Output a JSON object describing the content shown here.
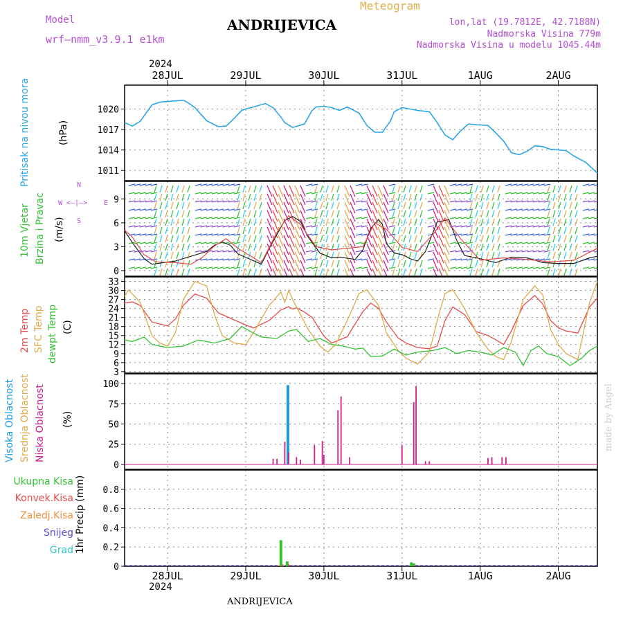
{
  "header": {
    "model_label": "Model",
    "model_name": "wrf—nmm_v3.9.1  e1km",
    "title": "ANDRIJEVICA",
    "subtitle": "Meteogram",
    "coords": "lon,lat (19.7812E, 42.7188N)",
    "elevation": "Nadmorska Visina 779m",
    "model_elevation": "Nadmorska Visina u modelu 1045.44m",
    "year_top": "2024",
    "year_bottom": "2024",
    "footer_station": "ANDRIJEVICA",
    "watermark": "made by Angel"
  },
  "colors": {
    "pressure": "#2aa6e8",
    "temp2m": "#e84a4a",
    "sfc": "#e0a94a",
    "dewpoint": "#33c233",
    "high_cloud": "#1e9be0",
    "mid_cloud": "#e0a94a",
    "low_cloud": "#cc1f8a",
    "precip_total": "#33c233",
    "precip_conv": "#e84a4a",
    "grid": "#888888"
  },
  "compass": {
    "n": "N",
    "s": "S",
    "w": "W",
    "e": "E"
  },
  "panel_labels": {
    "pressure": [
      "Pritisak na nivou mora",
      "(hPa)"
    ],
    "wind": [
      "10m Vjetar",
      "Brzina i Pravac",
      "(m/s)"
    ],
    "temp": [
      "2m Temp",
      "SFC Temp",
      "dewpt Temp",
      "(C)"
    ],
    "cloud": [
      "Visoka Oblacnost",
      "Srednja Oblacnost",
      "Niska Oblacnost",
      "(%)"
    ],
    "precip_legend": [
      "Ukupna Kisa",
      "Konvek.Kisa",
      "Zaledj.Kisa",
      "Snijeg",
      "Grad"
    ],
    "precip_axis": "1hr Precip (mm)"
  },
  "chart_data": [
    {
      "type": "line",
      "name": "pressure",
      "days": [
        "28JUL",
        "29JUL",
        "30JUL",
        "31JUL",
        "1AUG",
        "2AUG"
      ],
      "x_range_days": [
        -0.55,
        5.5
      ],
      "ylim": [
        1009.5,
        1023.5
      ],
      "yticks": [
        1011,
        1014,
        1017,
        1020
      ],
      "x": [
        -0.55,
        -0.45,
        -0.35,
        -0.2,
        -0.1,
        0.1,
        0.2,
        0.25,
        0.35,
        0.5,
        0.65,
        0.75,
        0.85,
        0.95,
        1.0,
        1.1,
        1.25,
        1.35,
        1.45,
        1.5,
        1.6,
        1.75,
        1.85,
        1.9,
        2.0,
        2.1,
        2.2,
        2.3,
        2.45,
        2.55,
        2.65,
        2.75,
        2.85,
        2.9,
        3.0,
        3.1,
        3.2,
        3.35,
        3.45,
        3.55,
        3.65,
        3.75,
        3.85,
        3.95,
        4.1,
        4.2,
        4.3,
        4.4,
        4.5,
        4.6,
        4.7,
        4.8,
        4.9,
        5.0,
        5.1,
        5.2,
        5.35,
        5.5
      ],
      "y": [
        1018.0,
        1017.5,
        1018.2,
        1020.6,
        1021.0,
        1021.2,
        1021.3,
        1021.0,
        1020.2,
        1018.3,
        1017.4,
        1017.5,
        1018.6,
        1019.8,
        1020.0,
        1020.3,
        1020.8,
        1020.2,
        1018.8,
        1018.0,
        1017.3,
        1017.8,
        1019.8,
        1020.3,
        1020.4,
        1020.2,
        1019.8,
        1020.3,
        1019.4,
        1017.6,
        1016.6,
        1016.6,
        1018.2,
        1019.6,
        1020.2,
        1020.0,
        1019.8,
        1019.6,
        1018.0,
        1016.2,
        1015.5,
        1016.8,
        1017.8,
        1017.7,
        1017.6,
        1016.5,
        1015.3,
        1013.6,
        1013.3,
        1013.8,
        1014.6,
        1014.5,
        1014.1,
        1014.0,
        1013.9,
        1013.1,
        1012.2,
        1010.6
      ],
      "xlabel": "",
      "ylabel": "(hPa)",
      "grid": true
    },
    {
      "type": "line",
      "name": "wind",
      "ylim": [
        -0.7,
        11.2
      ],
      "yticks": [
        0,
        3,
        6,
        9
      ],
      "series": [
        {
          "color": "#222222",
          "x": [
            -0.55,
            -0.45,
            -0.3,
            -0.2,
            0.1,
            0.3,
            0.5,
            0.6,
            0.7,
            0.8,
            0.9,
            1.2,
            1.3,
            1.5,
            1.6,
            1.7,
            1.8,
            1.95,
            2.1,
            2.2,
            2.4,
            2.5,
            2.6,
            2.7,
            2.75,
            2.8,
            2.9,
            3.0,
            3.05,
            3.1,
            3.2,
            3.3,
            3.45,
            3.6,
            3.7,
            3.8,
            4.0,
            4.2,
            4.4,
            4.6,
            4.8,
            5.0,
            5.2,
            5.4,
            5.5
          ],
          "y": [
            5.0,
            3.5,
            1.5,
            0.8,
            1.2,
            1.8,
            2.4,
            3.2,
            3.6,
            3.2,
            2.1,
            0.8,
            2.8,
            6.3,
            6.8,
            6.2,
            4.2,
            2.2,
            1.6,
            1.7,
            1.4,
            2.6,
            5.3,
            6.4,
            5.8,
            3.4,
            2.2,
            2.0,
            1.8,
            1.5,
            1.2,
            2.4,
            6.1,
            6.4,
            3.8,
            1.9,
            1.5,
            1.0,
            1.7,
            1.6,
            1.0,
            0.9,
            0.9,
            1.6,
            1.8
          ]
        },
        {
          "color": "#e84a4a",
          "x": [
            -0.55,
            -0.45,
            -0.3,
            -0.15,
            0.1,
            0.3,
            0.45,
            0.6,
            0.75,
            0.9,
            1.2,
            1.4,
            1.55,
            1.7,
            1.9,
            2.1,
            2.3,
            2.5,
            2.65,
            2.8,
            3.0,
            3.2,
            3.4,
            3.55,
            3.75,
            4.0,
            4.3,
            4.6,
            4.9,
            5.2,
            5.5
          ],
          "y": [
            5.1,
            4.2,
            2.0,
            1.1,
            1.0,
            0.8,
            1.7,
            3.1,
            4.0,
            2.8,
            1.0,
            4.8,
            6.9,
            5.8,
            3.0,
            2.6,
            2.8,
            3.0,
            6.0,
            5.2,
            2.9,
            2.4,
            4.6,
            6.6,
            4.0,
            1.3,
            1.6,
            1.4,
            1.1,
            1.3,
            2.8
          ]
        }
      ],
      "xlabel": "",
      "ylabel": "(m/s)",
      "grid": true
    },
    {
      "type": "line",
      "name": "temperature",
      "ylim": [
        2.5,
        34.5
      ],
      "yticks": [
        3,
        6,
        9,
        12,
        15,
        18,
        21,
        24,
        27,
        30,
        33
      ],
      "series": [
        {
          "color": "#e84a4a",
          "x": [
            -0.55,
            -0.45,
            -0.35,
            -0.2,
            0.0,
            0.1,
            0.2,
            0.35,
            0.5,
            0.65,
            0.8,
            1.0,
            1.1,
            1.3,
            1.45,
            1.55,
            1.6,
            1.65,
            1.75,
            1.85,
            2.0,
            2.1,
            2.3,
            2.5,
            2.6,
            2.7,
            2.8,
            2.95,
            3.05,
            3.2,
            3.35,
            3.45,
            3.55,
            3.65,
            3.8,
            3.95,
            4.1,
            4.2,
            4.3,
            4.4,
            4.55,
            4.7,
            4.8,
            4.9,
            5.0,
            5.1,
            5.25,
            5.4,
            5.5
          ],
          "y": [
            25.8,
            26.2,
            25.0,
            19.5,
            18.2,
            20.5,
            25.0,
            28.8,
            27.4,
            22.5,
            20.8,
            18.5,
            17.5,
            20.0,
            23.5,
            24.6,
            23.8,
            24.2,
            22.8,
            21.0,
            14.8,
            12.5,
            14.6,
            23.0,
            25.8,
            24.0,
            19.5,
            14.2,
            12.5,
            11.0,
            10.6,
            11.5,
            20.0,
            24.5,
            22.0,
            16.3,
            15.0,
            13.6,
            12.0,
            16.5,
            25.0,
            28.3,
            25.5,
            20.0,
            17.6,
            16.5,
            15.8,
            24.5,
            27.5
          ]
        },
        {
          "color": "#e0a94a",
          "x": [
            -0.55,
            -0.5,
            -0.35,
            -0.2,
            -0.1,
            0.0,
            0.1,
            0.2,
            0.35,
            0.5,
            0.6,
            0.7,
            0.85,
            1.0,
            1.1,
            1.3,
            1.45,
            1.5,
            1.55,
            1.6,
            1.7,
            1.8,
            1.95,
            2.05,
            2.15,
            2.3,
            2.45,
            2.55,
            2.7,
            2.8,
            2.95,
            3.05,
            3.2,
            3.35,
            3.45,
            3.55,
            3.65,
            3.8,
            3.95,
            4.1,
            4.2,
            4.3,
            4.4,
            4.55,
            4.7,
            4.8,
            4.9,
            5.0,
            5.1,
            5.25,
            5.4,
            5.5
          ],
          "y": [
            28.0,
            30.2,
            26.0,
            15.0,
            12.5,
            11.5,
            16.0,
            27.0,
            33.0,
            31.5,
            22.0,
            15.0,
            12.5,
            12.0,
            16.0,
            25.0,
            29.5,
            26.0,
            30.0,
            27.0,
            22.0,
            17.0,
            11.5,
            9.5,
            12.0,
            20.0,
            29.0,
            30.2,
            25.0,
            16.0,
            10.0,
            7.5,
            5.5,
            9.5,
            20.0,
            29.0,
            30.2,
            24.0,
            16.0,
            10.5,
            8.0,
            7.0,
            13.0,
            27.0,
            31.5,
            28.5,
            17.0,
            12.0,
            9.0,
            7.0,
            26.0,
            33.0
          ]
        },
        {
          "color": "#33c233",
          "x": [
            -0.55,
            -0.45,
            -0.3,
            -0.2,
            0.0,
            0.2,
            0.4,
            0.6,
            0.8,
            0.95,
            1.05,
            1.2,
            1.4,
            1.55,
            1.65,
            1.8,
            1.95,
            2.1,
            2.25,
            2.4,
            2.5,
            2.6,
            2.75,
            2.9,
            3.05,
            3.2,
            3.4,
            3.55,
            3.7,
            3.85,
            4.0,
            4.15,
            4.3,
            4.45,
            4.55,
            4.65,
            4.75,
            4.85,
            5.0,
            5.15,
            5.3,
            5.4,
            5.5
          ],
          "y": [
            13.5,
            13.0,
            14.5,
            12.0,
            11.0,
            11.5,
            13.5,
            12.5,
            14.0,
            18.0,
            16.5,
            14.5,
            14.0,
            16.5,
            17.0,
            13.0,
            14.0,
            12.0,
            11.5,
            10.5,
            10.8,
            8.0,
            8.2,
            10.5,
            8.5,
            9.5,
            10.0,
            11.0,
            9.0,
            10.0,
            9.5,
            8.5,
            11.0,
            9.5,
            5.0,
            10.0,
            11.5,
            9.0,
            8.0,
            5.0,
            7.5,
            10.0,
            11.5
          ]
        }
      ],
      "xlabel": "",
      "ylabel": "(C)",
      "grid": true
    },
    {
      "type": "bar",
      "name": "cloud_cover",
      "ylim": [
        -6,
        112
      ],
      "yticks": [
        0,
        25,
        50,
        75,
        100
      ],
      "series": [
        {
          "color": "#1e9be0",
          "x": [
            1.54
          ],
          "y": [
            98
          ]
        },
        {
          "color": "#cc1f8a",
          "x": [
            1.35,
            1.4,
            1.5,
            1.55,
            1.65,
            1.7,
            1.88,
            1.98,
            2.0,
            2.18,
            2.22,
            2.33,
            3.0,
            3.15,
            3.18,
            3.3,
            3.35,
            4.1,
            4.15,
            4.28,
            4.33
          ],
          "y": [
            7,
            7,
            28,
            15,
            9,
            6,
            24,
            29,
            12,
            67,
            84,
            9,
            24,
            77,
            97,
            4,
            4,
            8,
            9,
            9,
            9
          ]
        }
      ],
      "xlabel": "",
      "ylabel": "(%)",
      "grid": true
    },
    {
      "type": "bar",
      "name": "precip_1hr",
      "ylim": [
        0,
        1.0
      ],
      "yticks": [
        0,
        0.2,
        0.4,
        0.6,
        0.8
      ],
      "series": [
        {
          "color": "#33c233",
          "x": [
            1.45,
            1.53,
            3.12,
            3.15
          ],
          "y": [
            0.27,
            0.05,
            0.04,
            0.03
          ]
        },
        {
          "color": "#e84a4a",
          "x": [
            1.41,
            1.47,
            1.55,
            3.16
          ],
          "y": [
            0.01,
            0.02,
            0.02,
            0.01
          ]
        }
      ],
      "xlabel": "",
      "ylabel": "1hr Precip (mm)",
      "grid": true
    }
  ]
}
